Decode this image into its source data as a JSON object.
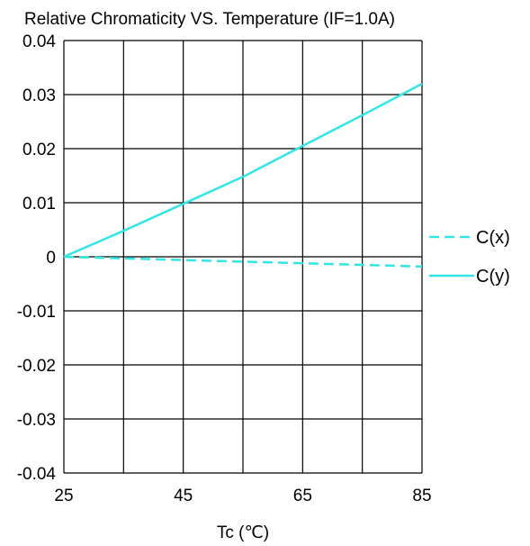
{
  "chart_data": {
    "type": "line",
    "title": "Relative Chromaticity VS. Temperature (IF=1.0A)",
    "xlabel": "Tc (℃)",
    "ylabel": "",
    "xlim": [
      25,
      85
    ],
    "ylim": [
      -0.04,
      0.04
    ],
    "x_ticks": [
      25,
      45,
      65,
      85
    ],
    "y_ticks": [
      "0.04",
      "0.03",
      "0.02",
      "0.01",
      "0",
      "-0.01",
      "-0.02",
      "-0.03",
      "-0.04"
    ],
    "grid": true,
    "legend_position": "right",
    "series": [
      {
        "name": "C(x)",
        "style": "dashed",
        "color": "#33e5e5",
        "x": [
          25,
          35,
          45,
          55,
          65,
          75,
          85
        ],
        "y": [
          0,
          -0.0003,
          -0.0006,
          -0.0009,
          -0.0012,
          -0.0015,
          -0.0018
        ]
      },
      {
        "name": "C(y)",
        "style": "solid",
        "color": "#33e5e5",
        "x": [
          25,
          35,
          45,
          55,
          65,
          75,
          85
        ],
        "y": [
          0,
          0.0048,
          0.0098,
          0.0148,
          0.0205,
          0.0262,
          0.032
        ]
      }
    ]
  }
}
